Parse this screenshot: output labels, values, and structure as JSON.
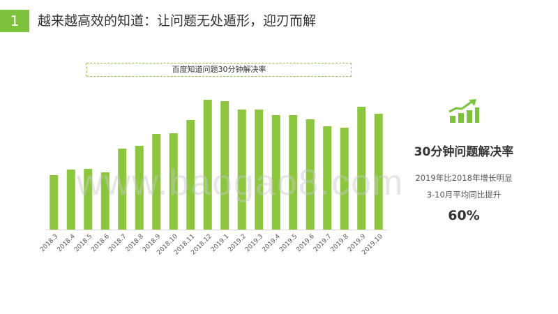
{
  "header": {
    "number": "1",
    "title": "越来越高效的知道：让问题无处遁形，迎刃而解"
  },
  "side": {
    "metric_title": "30分钟问题解决率",
    "desc_line1": "2019年比2018年增长明显",
    "desc_line2": "3-10月平均同比提升",
    "value": "60%",
    "icon": "growth-bar-chart-icon"
  },
  "watermark": "www.baogao8.com",
  "colors": {
    "accent": "#7dc23c",
    "bar": "#8cc63f"
  },
  "chart_data": {
    "type": "bar",
    "title": "百度知道问题30分钟解决率",
    "categories": [
      "2018.3",
      "2018.4",
      "2018.5",
      "2018.6",
      "2018.7",
      "2018.8",
      "2018.9",
      "2018.10",
      "2018.11",
      "2018.12",
      "2019.1",
      "2019.2",
      "2019.3",
      "2019.4",
      "2019.5",
      "2019.6",
      "2019.7",
      "2019.8",
      "2019.9",
      "2019.10"
    ],
    "values": [
      78,
      86,
      87,
      82,
      116,
      120,
      137,
      138,
      157,
      186,
      184,
      172,
      172,
      164,
      164,
      158,
      148,
      146,
      176,
      166
    ],
    "ylim": [
      0,
      200
    ],
    "grid": false,
    "legend": "none"
  }
}
